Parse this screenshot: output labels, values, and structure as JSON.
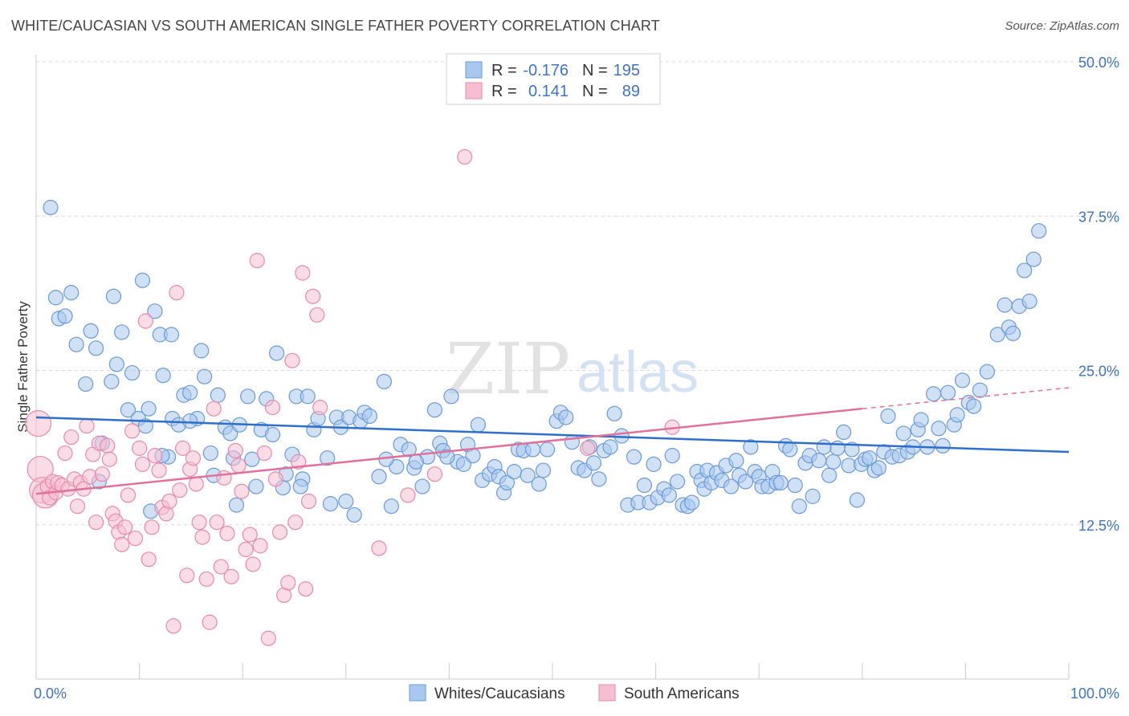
{
  "title": "WHITE/CAUCASIAN VS SOUTH AMERICAN SINGLE FATHER POVERTY CORRELATION CHART",
  "source": "Source: ZipAtlas.com",
  "watermark": {
    "zip": "ZIP",
    "atlas": "atlas"
  },
  "colors": {
    "blue_fill": "#a9c8ef",
    "blue_stroke": "#6b9ad8",
    "blue_line": "#2f6fcc",
    "pink_fill": "#f6bfd1",
    "pink_stroke": "#e88aa9",
    "pink_line": "#e0719a",
    "tick_text": "#3f73c4",
    "grid": "#d8d8d8"
  },
  "legend": {
    "rows": [
      {
        "r_label": "R =",
        "r_value": "-0.176",
        "n_label": "N =",
        "n_value": "195"
      },
      {
        "r_label": "R =",
        "r_value": "0.141",
        "n_label": "N =",
        "n_value": "89"
      }
    ]
  },
  "bottom_legend": [
    "Whites/Caucasians",
    "South Americans"
  ],
  "chart_data": {
    "type": "scatter",
    "title": "WHITE/CAUCASIAN VS SOUTH AMERICAN SINGLE FATHER POVERTY CORRELATION CHART",
    "xlabel": "",
    "ylabel": "Single Father Poverty",
    "xlim": [
      0,
      100
    ],
    "ylim": [
      0,
      50
    ],
    "x_ticks": [
      "0.0%",
      "100.0%"
    ],
    "y_ticks": [
      {
        "value": 12.5,
        "label": "12.5%"
      },
      {
        "value": 25.0,
        "label": "25.0%"
      },
      {
        "value": 37.5,
        "label": "37.5%"
      },
      {
        "value": 50.0,
        "label": "50.0%"
      }
    ],
    "grid": true,
    "legend_position": "top-center",
    "series": [
      {
        "name": "Whites/Caucasians",
        "color": "#6b9ad8",
        "trend": {
          "x0": 0,
          "y0": 21.2,
          "x1": 100,
          "y1": 18.4
        },
        "points": [
          [
            1.4,
            38.2
          ],
          [
            1.9,
            30.9
          ],
          [
            2.2,
            29.2
          ],
          [
            2.8,
            29.4
          ],
          [
            3.4,
            31.3
          ],
          [
            3.9,
            27.1
          ],
          [
            4.8,
            23.9
          ],
          [
            5.3,
            28.2
          ],
          [
            5.8,
            26.8
          ],
          [
            6.4,
            19.1
          ],
          [
            7.3,
            24.1
          ],
          [
            7.5,
            31.0
          ],
          [
            7.8,
            25.5
          ],
          [
            8.3,
            28.1
          ],
          [
            8.9,
            21.8
          ],
          [
            9.3,
            24.8
          ],
          [
            9.9,
            21.1
          ],
          [
            10.3,
            32.3
          ],
          [
            10.6,
            20.5
          ],
          [
            10.9,
            21.9
          ],
          [
            11.5,
            29.8
          ],
          [
            12.0,
            27.9
          ],
          [
            12.3,
            24.6
          ],
          [
            12.8,
            18.0
          ],
          [
            13.2,
            21.1
          ],
          [
            13.8,
            20.6
          ],
          [
            14.3,
            23.0
          ],
          [
            14.9,
            23.2
          ],
          [
            15.6,
            21.1
          ],
          [
            16.0,
            26.6
          ],
          [
            16.3,
            24.5
          ],
          [
            16.9,
            18.3
          ],
          [
            17.2,
            16.5
          ],
          [
            17.6,
            23.0
          ],
          [
            18.3,
            20.4
          ],
          [
            18.8,
            19.9
          ],
          [
            19.1,
            17.9
          ],
          [
            19.4,
            14.1
          ],
          [
            19.7,
            20.6
          ],
          [
            20.5,
            22.9
          ],
          [
            21.3,
            15.6
          ],
          [
            21.8,
            20.2
          ],
          [
            22.3,
            22.7
          ],
          [
            22.9,
            19.8
          ],
          [
            23.3,
            26.4
          ],
          [
            23.9,
            15.5
          ],
          [
            24.2,
            16.6
          ],
          [
            24.8,
            18.2
          ],
          [
            25.2,
            22.9
          ],
          [
            25.8,
            16.2
          ],
          [
            26.3,
            22.9
          ],
          [
            26.9,
            20.2
          ],
          [
            27.3,
            21.1
          ],
          [
            28.2,
            17.9
          ],
          [
            28.5,
            14.2
          ],
          [
            29.1,
            21.2
          ],
          [
            29.5,
            20.4
          ],
          [
            30.3,
            21.2
          ],
          [
            30.8,
            13.3
          ],
          [
            31.4,
            20.9
          ],
          [
            31.8,
            21.6
          ],
          [
            32.3,
            21.3
          ],
          [
            33.2,
            16.4
          ],
          [
            33.7,
            24.1
          ],
          [
            34.4,
            14.0
          ],
          [
            34.9,
            17.2
          ],
          [
            35.3,
            19.0
          ],
          [
            36.1,
            18.6
          ],
          [
            36.6,
            17.1
          ],
          [
            37.4,
            15.6
          ],
          [
            37.9,
            18.0
          ],
          [
            38.6,
            21.8
          ],
          [
            39.1,
            19.1
          ],
          [
            39.4,
            18.5
          ],
          [
            40.2,
            22.9
          ],
          [
            40.8,
            17.6
          ],
          [
            41.4,
            17.4
          ],
          [
            41.8,
            19.0
          ],
          [
            42.3,
            18.1
          ],
          [
            42.8,
            20.6
          ],
          [
            43.2,
            16.1
          ],
          [
            43.9,
            16.6
          ],
          [
            44.4,
            17.2
          ],
          [
            44.8,
            16.4
          ],
          [
            45.3,
            15.1
          ],
          [
            45.6,
            15.9
          ],
          [
            46.3,
            16.8
          ],
          [
            46.7,
            18.6
          ],
          [
            47.2,
            18.5
          ],
          [
            47.6,
            16.5
          ],
          [
            48.1,
            18.6
          ],
          [
            48.7,
            15.8
          ],
          [
            49.1,
            16.9
          ],
          [
            49.5,
            18.6
          ],
          [
            50.4,
            20.9
          ],
          [
            50.8,
            21.6
          ],
          [
            51.3,
            21.2
          ],
          [
            51.9,
            19.2
          ],
          [
            52.5,
            17.1
          ],
          [
            53.1,
            16.9
          ],
          [
            53.6,
            18.8
          ],
          [
            54.0,
            17.5
          ],
          [
            54.5,
            16.2
          ],
          [
            55.0,
            18.5
          ],
          [
            55.6,
            18.8
          ],
          [
            56.0,
            21.5
          ],
          [
            56.7,
            19.7
          ],
          [
            57.3,
            14.1
          ],
          [
            57.9,
            18.0
          ],
          [
            58.3,
            14.3
          ],
          [
            58.9,
            15.7
          ],
          [
            59.4,
            14.3
          ],
          [
            59.8,
            17.4
          ],
          [
            60.2,
            14.7
          ],
          [
            60.8,
            15.4
          ],
          [
            61.3,
            14.9
          ],
          [
            61.6,
            18.1
          ],
          [
            62.1,
            16.0
          ],
          [
            62.6,
            14.1
          ],
          [
            63.1,
            14.0
          ],
          [
            63.5,
            14.3
          ],
          [
            64.0,
            16.8
          ],
          [
            64.4,
            16.1
          ],
          [
            64.7,
            15.4
          ],
          [
            65.0,
            16.9
          ],
          [
            65.4,
            15.9
          ],
          [
            65.9,
            16.7
          ],
          [
            66.4,
            16.1
          ],
          [
            66.8,
            17.3
          ],
          [
            67.3,
            15.6
          ],
          [
            67.8,
            17.7
          ],
          [
            68.1,
            16.5
          ],
          [
            68.7,
            16.0
          ],
          [
            69.2,
            18.8
          ],
          [
            69.6,
            16.8
          ],
          [
            70.0,
            16.4
          ],
          [
            70.3,
            15.6
          ],
          [
            70.9,
            15.6
          ],
          [
            71.3,
            16.8
          ],
          [
            71.7,
            15.9
          ],
          [
            72.1,
            15.9
          ],
          [
            72.6,
            18.9
          ],
          [
            73.0,
            18.6
          ],
          [
            73.5,
            15.7
          ],
          [
            73.9,
            14.0
          ],
          [
            74.5,
            17.5
          ],
          [
            74.9,
            18.1
          ],
          [
            75.2,
            14.8
          ],
          [
            75.8,
            17.7
          ],
          [
            76.3,
            18.8
          ],
          [
            76.8,
            16.5
          ],
          [
            77.2,
            17.6
          ],
          [
            77.6,
            18.7
          ],
          [
            78.2,
            20.0
          ],
          [
            78.7,
            17.3
          ],
          [
            79.0,
            18.6
          ],
          [
            79.5,
            14.5
          ],
          [
            79.9,
            17.4
          ],
          [
            80.3,
            17.8
          ],
          [
            80.7,
            17.9
          ],
          [
            81.2,
            16.9
          ],
          [
            81.6,
            17.1
          ],
          [
            82.1,
            18.4
          ],
          [
            82.5,
            21.3
          ],
          [
            82.9,
            18.0
          ],
          [
            83.6,
            18.1
          ],
          [
            84.0,
            19.9
          ],
          [
            84.4,
            18.4
          ],
          [
            84.9,
            18.8
          ],
          [
            85.4,
            20.2
          ],
          [
            85.7,
            21.0
          ],
          [
            86.3,
            18.8
          ],
          [
            86.9,
            23.1
          ],
          [
            87.4,
            20.3
          ],
          [
            87.8,
            18.9
          ],
          [
            88.3,
            23.2
          ],
          [
            88.9,
            20.6
          ],
          [
            89.2,
            21.4
          ],
          [
            89.7,
            24.2
          ],
          [
            90.3,
            22.4
          ],
          [
            90.8,
            22.1
          ],
          [
            91.4,
            23.4
          ],
          [
            92.1,
            24.9
          ],
          [
            93.1,
            27.9
          ],
          [
            93.8,
            30.3
          ],
          [
            94.2,
            28.5
          ],
          [
            94.6,
            28.0
          ],
          [
            95.2,
            30.2
          ],
          [
            95.7,
            33.1
          ],
          [
            96.2,
            30.6
          ],
          [
            96.6,
            34.0
          ],
          [
            97.1,
            36.3
          ],
          [
            6.1,
            16.0
          ],
          [
            11.1,
            13.6
          ],
          [
            12.2,
            18.1
          ],
          [
            13.1,
            27.9
          ],
          [
            14.9,
            20.9
          ],
          [
            20.9,
            17.8
          ],
          [
            25.6,
            15.6
          ],
          [
            30.0,
            14.4
          ],
          [
            33.9,
            17.8
          ],
          [
            36.8,
            17.6
          ],
          [
            39.8,
            18.0
          ]
        ]
      },
      {
        "name": "South Americans",
        "color": "#e88aa9",
        "trend": {
          "x0": 0,
          "y0": 15.0,
          "x1": 80,
          "y1": 21.9
        },
        "trend_dashed": {
          "x0": 80,
          "y0": 21.9,
          "x1": 100,
          "y1": 23.6
        },
        "points": [
          [
            0.2,
            20.7
          ],
          [
            0.4,
            17.0
          ],
          [
            0.6,
            15.3
          ],
          [
            0.9,
            14.9
          ],
          [
            1.1,
            15.6
          ],
          [
            1.3,
            14.7
          ],
          [
            1.6,
            16.0
          ],
          [
            1.9,
            15.1
          ],
          [
            2.1,
            15.9
          ],
          [
            2.5,
            15.7
          ],
          [
            2.8,
            18.3
          ],
          [
            3.1,
            15.4
          ],
          [
            3.4,
            19.6
          ],
          [
            3.7,
            16.2
          ],
          [
            4.0,
            14.0
          ],
          [
            4.3,
            15.9
          ],
          [
            4.6,
            15.4
          ],
          [
            4.9,
            20.5
          ],
          [
            5.2,
            16.4
          ],
          [
            5.5,
            18.2
          ],
          [
            5.8,
            12.7
          ],
          [
            6.1,
            19.1
          ],
          [
            6.4,
            16.6
          ],
          [
            6.9,
            18.9
          ],
          [
            7.1,
            17.8
          ],
          [
            7.4,
            13.4
          ],
          [
            7.7,
            12.8
          ],
          [
            8.0,
            11.9
          ],
          [
            8.3,
            10.9
          ],
          [
            8.6,
            12.3
          ],
          [
            8.9,
            14.9
          ],
          [
            9.3,
            20.1
          ],
          [
            9.6,
            11.4
          ],
          [
            10.0,
            18.7
          ],
          [
            10.3,
            17.4
          ],
          [
            10.6,
            29.0
          ],
          [
            10.9,
            9.7
          ],
          [
            11.2,
            12.3
          ],
          [
            11.5,
            18.1
          ],
          [
            11.9,
            16.9
          ],
          [
            12.2,
            13.9
          ],
          [
            12.6,
            13.4
          ],
          [
            12.9,
            14.4
          ],
          [
            13.3,
            4.3
          ],
          [
            13.6,
            31.3
          ],
          [
            13.9,
            15.3
          ],
          [
            14.2,
            18.7
          ],
          [
            14.6,
            8.4
          ],
          [
            14.9,
            17.0
          ],
          [
            15.2,
            17.9
          ],
          [
            15.5,
            15.8
          ],
          [
            15.8,
            12.7
          ],
          [
            16.1,
            11.5
          ],
          [
            16.5,
            8.1
          ],
          [
            16.8,
            4.6
          ],
          [
            17.2,
            21.9
          ],
          [
            17.5,
            12.7
          ],
          [
            17.9,
            9.1
          ],
          [
            18.2,
            16.3
          ],
          [
            18.5,
            11.8
          ],
          [
            18.9,
            8.3
          ],
          [
            19.3,
            18.5
          ],
          [
            19.6,
            17.3
          ],
          [
            19.9,
            15.2
          ],
          [
            20.3,
            10.5
          ],
          [
            20.7,
            11.7
          ],
          [
            21.0,
            9.3
          ],
          [
            21.4,
            33.9
          ],
          [
            21.7,
            10.8
          ],
          [
            22.1,
            18.3
          ],
          [
            22.5,
            3.3
          ],
          [
            22.9,
            22.0
          ],
          [
            23.2,
            16.2
          ],
          [
            23.6,
            11.9
          ],
          [
            24.0,
            6.8
          ],
          [
            24.4,
            7.8
          ],
          [
            24.8,
            25.8
          ],
          [
            25.1,
            12.7
          ],
          [
            25.4,
            17.6
          ],
          [
            25.8,
            32.9
          ],
          [
            26.1,
            7.3
          ],
          [
            26.4,
            14.4
          ],
          [
            26.8,
            31.0
          ],
          [
            27.2,
            29.5
          ],
          [
            27.5,
            22.0
          ],
          [
            38.6,
            16.6
          ],
          [
            41.5,
            42.3
          ],
          [
            53.4,
            18.7
          ],
          [
            61.6,
            20.4
          ],
          [
            33.2,
            10.6
          ],
          [
            36.0,
            14.9
          ]
        ]
      }
    ]
  }
}
